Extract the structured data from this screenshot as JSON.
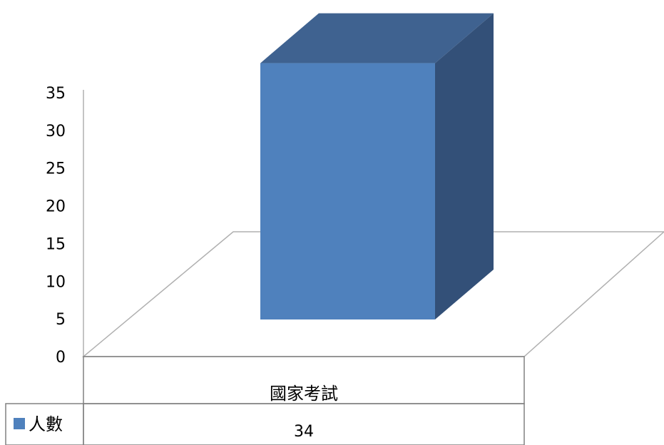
{
  "chart_data": {
    "type": "bar",
    "categories": [
      "國家考試"
    ],
    "series": [
      {
        "name": "人數",
        "values": [
          34
        ],
        "color": "#4F81BD"
      }
    ],
    "ylim": [
      0,
      35
    ],
    "yticks": [
      "0",
      "5",
      "10",
      "15",
      "20",
      "25",
      "30",
      "35"
    ],
    "grid": false,
    "legend": "data-table-left",
    "data_table": true
  }
}
